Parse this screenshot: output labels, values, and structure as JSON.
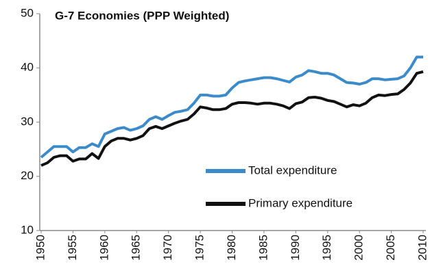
{
  "chart_data": {
    "type": "line",
    "title": "G-7 Economies (PPP Weighted)",
    "x": [
      1950,
      1951,
      1952,
      1953,
      1954,
      1955,
      1956,
      1957,
      1958,
      1959,
      1960,
      1961,
      1962,
      1963,
      1964,
      1965,
      1966,
      1967,
      1968,
      1969,
      1970,
      1971,
      1972,
      1973,
      1974,
      1975,
      1976,
      1977,
      1978,
      1979,
      1980,
      1981,
      1982,
      1983,
      1984,
      1985,
      1986,
      1987,
      1988,
      1989,
      1990,
      1991,
      1992,
      1993,
      1994,
      1995,
      1996,
      1997,
      1998,
      1999,
      2000,
      2001,
      2002,
      2003,
      2004,
      2005,
      2006,
      2007,
      2008,
      2009,
      2010
    ],
    "series": [
      {
        "name": "Total expenditure",
        "color": "#3b8bca",
        "values": [
          23.5,
          24.5,
          25.5,
          25.5,
          25.5,
          24.5,
          25.3,
          25.3,
          26,
          25.5,
          27.8,
          28.3,
          28.8,
          29,
          28.5,
          28.8,
          29.3,
          30.5,
          31,
          30.5,
          31.2,
          31.8,
          32,
          32.3,
          33.5,
          35,
          35,
          34.8,
          34.8,
          35,
          36.3,
          37.3,
          37.6,
          37.8,
          38,
          38.2,
          38.2,
          38,
          37.7,
          37.4,
          38.3,
          38.7,
          39.5,
          39.3,
          39,
          39,
          38.7,
          38,
          37.3,
          37.2,
          37,
          37.3,
          38,
          38,
          37.8,
          37.9,
          38,
          38.5,
          40,
          42,
          42
        ]
      },
      {
        "name": "Primary expenditure",
        "color": "#111111",
        "values": [
          22,
          22.5,
          23.5,
          23.8,
          23.8,
          22.8,
          23.2,
          23.2,
          24.2,
          23.3,
          25.5,
          26.5,
          27,
          27,
          26.7,
          27,
          27.5,
          28.8,
          29.2,
          28.8,
          29.3,
          29.8,
          30.2,
          30.5,
          31.5,
          32.8,
          32.6,
          32.3,
          32.3,
          32.5,
          33.3,
          33.6,
          33.6,
          33.5,
          33.3,
          33.5,
          33.5,
          33.3,
          33,
          32.5,
          33.4,
          33.7,
          34.5,
          34.6,
          34.4,
          34,
          33.8,
          33.3,
          32.8,
          33.2,
          33,
          33.5,
          34.5,
          35,
          34.9,
          35.1,
          35.2,
          36,
          37.2,
          39,
          39.3
        ]
      }
    ],
    "xlim": [
      1950,
      2010
    ],
    "xticks": [
      1950,
      1955,
      1960,
      1965,
      1970,
      1975,
      1980,
      1985,
      1990,
      1995,
      2000,
      2005,
      2010
    ],
    "ylim": [
      10,
      50
    ],
    "yticks": [
      10,
      20,
      30,
      40,
      50
    ],
    "grid": false,
    "legend_position": "lower right"
  }
}
